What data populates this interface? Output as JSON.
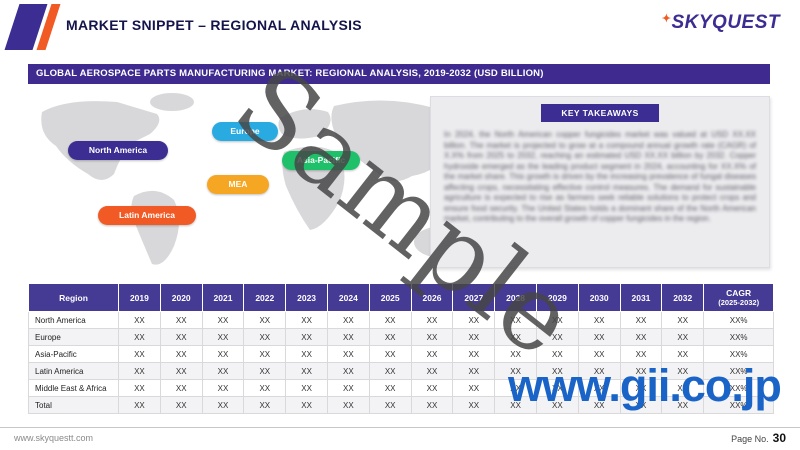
{
  "header": {
    "title": "MARKET SNIPPET – REGIONAL ANALYSIS",
    "brand": "SKYQUEST",
    "brand_spark": "✦"
  },
  "banner": {
    "text": "GLOBAL AEROSPACE PARTS MANUFACTURING MARKET: REGIONAL ANALYSIS, 2019-2032 (USD BILLION)"
  },
  "map": {
    "labels": [
      {
        "name": "North America",
        "color": "#3b2d91"
      },
      {
        "name": "Europe",
        "color": "#29abe2"
      },
      {
        "name": "Asia-Pacific",
        "color": "#1fc06a"
      },
      {
        "name": "MEA",
        "color": "#f5a623"
      },
      {
        "name": "Latin America",
        "color": "#f15a24"
      }
    ]
  },
  "takeaways": {
    "title": "KEY TAKEAWAYS",
    "body": "In 2024, the North American copper fungicides market was valued at USD XX.XX billion. The market is projected to grow at a compound annual growth rate (CAGR) of X.X% from 2025 to 2032, reaching an estimated USD XX.XX billion by 2032. Copper hydroxide emerged as the leading product segment in 2024, accounting for XX.X% of the market share. This growth is driven by the increasing prevalence of fungal diseases affecting crops, necessitating effective control measures. The demand for sustainable agriculture is expected to rise as farmers seek reliable solutions to protect crops and ensure food security. The United States holds a dominant share of the North American market, contributing to the overall growth of copper fungicides in the region."
  },
  "watermarks": {
    "sample": "Sample",
    "site": "www.gii.co.jp"
  },
  "table": {
    "region_header": "Region",
    "years": [
      "2019",
      "2020",
      "2021",
      "2022",
      "2023",
      "2024",
      "2025",
      "2026",
      "2027",
      "2028",
      "2029",
      "2030",
      "2031",
      "2032"
    ],
    "cagr_header_line1": "CAGR",
    "cagr_header_line2": "(2025-2032)",
    "rows": [
      {
        "region": "North America",
        "values": [
          "XX",
          "XX",
          "XX",
          "XX",
          "XX",
          "XX",
          "XX",
          "XX",
          "XX",
          "XX",
          "XX",
          "XX",
          "XX",
          "XX"
        ],
        "cagr": "XX%"
      },
      {
        "region": "Europe",
        "values": [
          "XX",
          "XX",
          "XX",
          "XX",
          "XX",
          "XX",
          "XX",
          "XX",
          "XX",
          "XX",
          "XX",
          "XX",
          "XX",
          "XX"
        ],
        "cagr": "XX%"
      },
      {
        "region": "Asia-Pacific",
        "values": [
          "XX",
          "XX",
          "XX",
          "XX",
          "XX",
          "XX",
          "XX",
          "XX",
          "XX",
          "XX",
          "XX",
          "XX",
          "XX",
          "XX"
        ],
        "cagr": "XX%"
      },
      {
        "region": "Latin America",
        "values": [
          "XX",
          "XX",
          "XX",
          "XX",
          "XX",
          "XX",
          "XX",
          "XX",
          "XX",
          "XX",
          "XX",
          "XX",
          "XX",
          "XX"
        ],
        "cagr": "XX%"
      },
      {
        "region": "Middle East & Africa",
        "values": [
          "XX",
          "XX",
          "XX",
          "XX",
          "XX",
          "XX",
          "XX",
          "XX",
          "XX",
          "XX",
          "XX",
          "XX",
          "XX",
          "XX"
        ],
        "cagr": "XX%"
      },
      {
        "region": "Total",
        "values": [
          "XX",
          "XX",
          "XX",
          "XX",
          "XX",
          "XX",
          "XX",
          "XX",
          "XX",
          "XX",
          "XX",
          "XX",
          "XX",
          "XX"
        ],
        "cagr": "XX%"
      }
    ]
  },
  "footer": {
    "left": "www.skyquestt.com",
    "right_label": "Page No.",
    "page_number": "30"
  }
}
